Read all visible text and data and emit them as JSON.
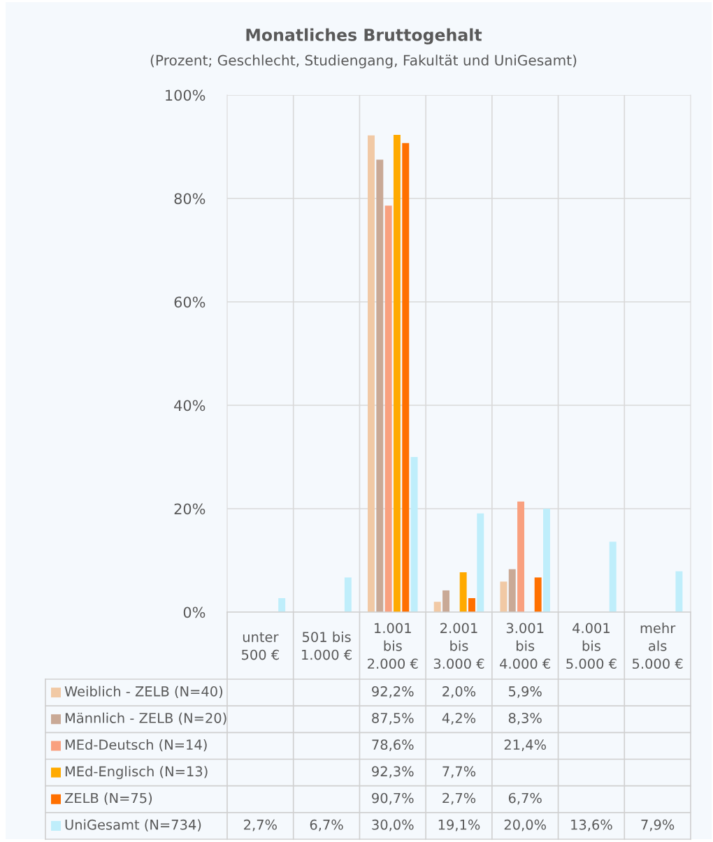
{
  "chart_data": {
    "type": "bar",
    "title": "Monatliches Bruttogehalt",
    "subtitle": "(Prozent; Geschlecht, Studiengang, Fakultät und UniGesamt)",
    "categories": [
      "unter\n500 €",
      "501 bis\n1.000 €",
      "1.001\nbis\n2.000 €",
      "2.001\nbis\n3.000 €",
      "3.001\nbis\n4.000 €",
      "4.001\nbis\n5.000 €",
      "mehr\nals\n5.000 €"
    ],
    "series": [
      {
        "name": "Weiblich - ZELB (N=40)",
        "color": "#f1c9a5",
        "values": [
          null,
          null,
          92.2,
          2.0,
          5.9,
          null,
          null
        ],
        "value_labels": [
          null,
          null,
          "92,2%",
          "2,0%",
          "5,9%",
          null,
          null
        ]
      },
      {
        "name": "Männlich - ZELB (N=20)",
        "color": "#c9a996",
        "values": [
          null,
          null,
          87.5,
          4.2,
          8.3,
          null,
          null
        ],
        "value_labels": [
          null,
          null,
          "87,5%",
          "4,2%",
          "8,3%",
          null,
          null
        ]
      },
      {
        "name": "MEd-Deutsch (N=14)",
        "color": "#f9a07f",
        "values": [
          null,
          null,
          78.6,
          null,
          21.4,
          null,
          null
        ],
        "value_labels": [
          null,
          null,
          "78,6%",
          null,
          "21,4%",
          null,
          null
        ]
      },
      {
        "name": "MEd-Englisch (N=13)",
        "color": "#ffaa00",
        "values": [
          null,
          null,
          92.3,
          7.7,
          null,
          null,
          null
        ],
        "value_labels": [
          null,
          null,
          "92,3%",
          "7,7%",
          null,
          null,
          null
        ]
      },
      {
        "name": "ZELB (N=75)",
        "color": "#ff7000",
        "values": [
          null,
          null,
          90.7,
          2.7,
          6.7,
          null,
          null
        ],
        "value_labels": [
          null,
          null,
          "90,7%",
          "2,7%",
          "6,7%",
          null,
          null
        ]
      },
      {
        "name": "UniGesamt (N=734)",
        "color": "#bfeefb",
        "values": [
          2.7,
          6.7,
          30.0,
          19.1,
          20.0,
          13.6,
          7.9
        ],
        "value_labels": [
          "2,7%",
          "6,7%",
          "30,0%",
          "19,1%",
          "20,0%",
          "13,6%",
          "7,9%"
        ]
      }
    ],
    "ylim": [
      0,
      100
    ],
    "yticks": [
      {
        "value": 0,
        "label": "0%"
      },
      {
        "value": 20,
        "label": "20%"
      },
      {
        "value": 40,
        "label": "40%"
      },
      {
        "value": 60,
        "label": "60%"
      },
      {
        "value": 80,
        "label": "80%"
      },
      {
        "value": 100,
        "label": "100%"
      }
    ],
    "grid": "y",
    "legend": "bottom"
  }
}
